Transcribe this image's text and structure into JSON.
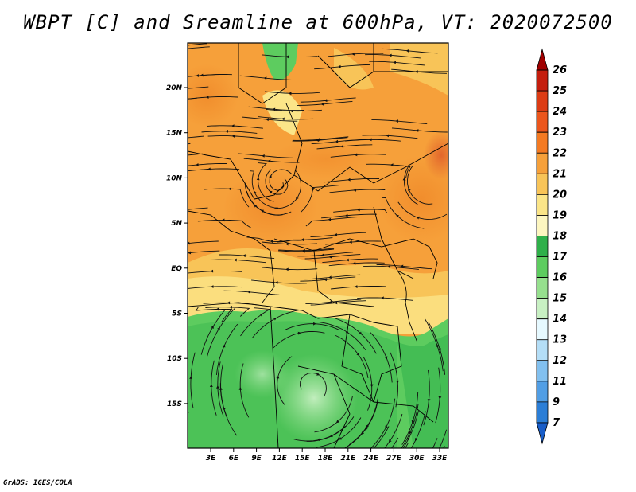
{
  "title": "WBPT [C] and Sreamline at 600hPa, VT: 2020072500",
  "footer": "GrADS: IGES/COLA",
  "map": {
    "lon_ticks": [
      "3E",
      "6E",
      "9E",
      "12E",
      "15E",
      "18E",
      "21E",
      "24E",
      "27E",
      "30E",
      "33E"
    ],
    "lat_ticks": [
      "20N",
      "15N",
      "10N",
      "5N",
      "EQ",
      "5S",
      "10S",
      "15S"
    ]
  },
  "colorbar": {
    "labels": [
      "26",
      "25",
      "24",
      "23",
      "22",
      "21",
      "20",
      "19",
      "18",
      "17",
      "16",
      "15",
      "14",
      "13",
      "12",
      "11",
      "9",
      "7"
    ],
    "colors": [
      "#a00000",
      "#c41e0e",
      "#dc3c14",
      "#ec561c",
      "#f47a22",
      "#f6a03a",
      "#f8c458",
      "#fbe588",
      "#fdf6c0",
      "#2fb04a",
      "#5dcc5f",
      "#96e08e",
      "#c8f0c3",
      "#e6f9ff",
      "#b4def7",
      "#82c0ef",
      "#519ee5",
      "#2b7ed7",
      "#1a5ec8"
    ]
  }
}
